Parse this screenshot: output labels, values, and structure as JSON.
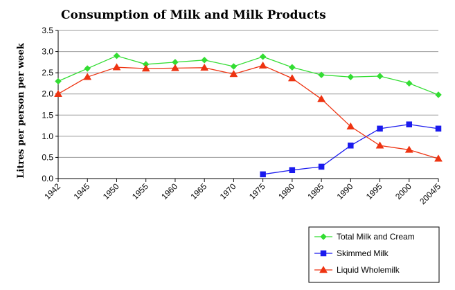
{
  "chart_data": {
    "type": "line",
    "title": "Consumption of Milk and Milk Products",
    "xlabel": "",
    "ylabel": "Litres per person per week",
    "categories": [
      "1942",
      "1945",
      "1950",
      "1955",
      "1960",
      "1965",
      "1970",
      "1975",
      "1980",
      "1985",
      "1990",
      "1995",
      "2000",
      "2004/5"
    ],
    "ylim": [
      0,
      3.5
    ],
    "yticks": [
      "0.0",
      "0.5",
      "1.0",
      "1.5",
      "2.0",
      "2.5",
      "3.0",
      "3.5"
    ],
    "grid": true,
    "legend_position": "bottom-right",
    "series": [
      {
        "name": "Total Milk and Cream",
        "color": "#33dd33",
        "marker": "diamond",
        "values": [
          2.3,
          2.6,
          2.9,
          2.7,
          2.75,
          2.8,
          2.65,
          2.88,
          2.63,
          2.45,
          2.4,
          2.42,
          2.25,
          1.98
        ]
      },
      {
        "name": "Skimmed Milk",
        "color": "#1a1aee",
        "marker": "square",
        "values": [
          null,
          null,
          null,
          null,
          null,
          null,
          null,
          0.1,
          0.2,
          0.28,
          0.78,
          1.18,
          1.28,
          1.18
        ]
      },
      {
        "name": "Liquid Wholemilk",
        "color": "#ee3311",
        "marker": "triangle",
        "values": [
          2.0,
          2.4,
          2.63,
          2.6,
          2.61,
          2.62,
          2.47,
          2.67,
          2.37,
          1.88,
          1.23,
          0.78,
          0.68,
          0.47
        ]
      }
    ]
  }
}
